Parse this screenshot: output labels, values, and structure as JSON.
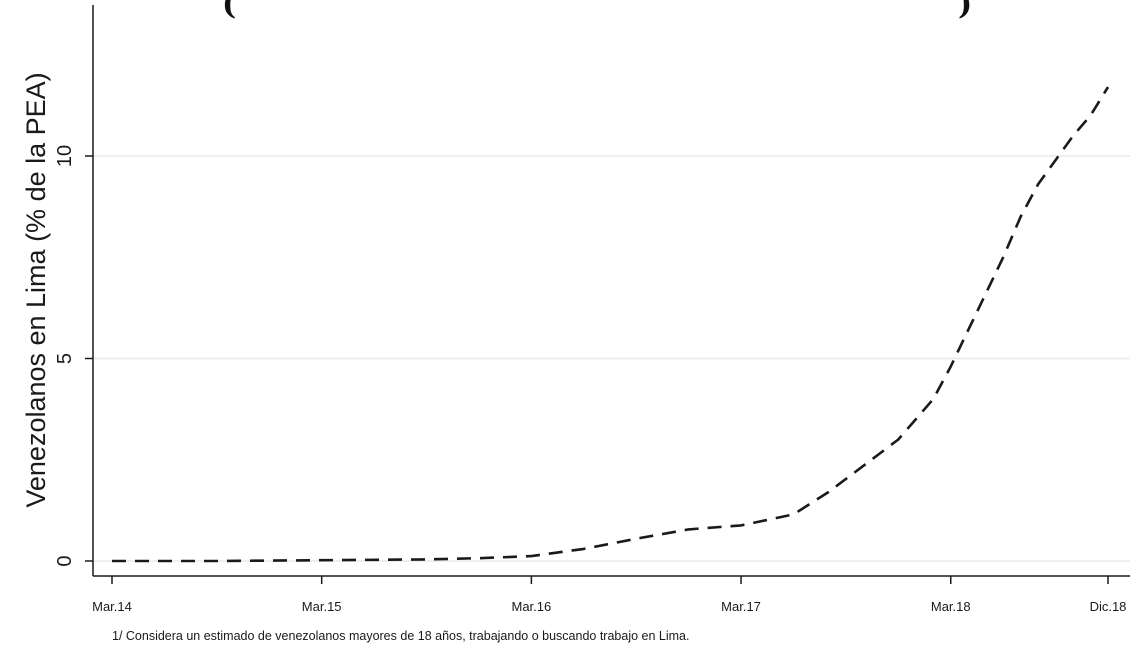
{
  "chart_data": {
    "type": "line",
    "title_fragment_left": "(",
    "title_fragment_right": ")",
    "ylabel": "Venezolanos en Lima (% de la PEA)",
    "xlabel": "",
    "ylim": [
      0,
      13
    ],
    "yticks": [
      0,
      5,
      10
    ],
    "grid": true,
    "xticks": [
      {
        "label": "Mar.14",
        "x": 0
      },
      {
        "label": "Mar.15",
        "x": 12
      },
      {
        "label": "Mar.16",
        "x": 24
      },
      {
        "label": "Mar.17",
        "x": 36
      },
      {
        "label": "Mar.18",
        "x": 48
      },
      {
        "label": "Dic.18",
        "x": 57
      }
    ],
    "x_unit": "months since Mar.14",
    "series": [
      {
        "style": "dashed",
        "color": "#1a1a1a",
        "x": [
          0,
          6,
          12,
          18,
          21,
          24,
          27,
          30,
          33,
          36,
          39,
          41,
          43,
          45,
          47,
          48,
          49,
          50,
          51,
          52,
          53,
          54,
          55,
          56,
          57
        ],
        "y": [
          0,
          0,
          0.02,
          0.04,
          0.07,
          0.12,
          0.3,
          0.55,
          0.78,
          0.88,
          1.15,
          1.7,
          2.35,
          3.0,
          4.0,
          4.8,
          5.7,
          6.6,
          7.5,
          8.5,
          9.3,
          9.9,
          10.5,
          11.0,
          11.7
        ]
      }
    ]
  },
  "footnote": "1/ Considera un estimado de venezolanos mayores de 18 años, trabajando o buscando trabajo en Lima."
}
